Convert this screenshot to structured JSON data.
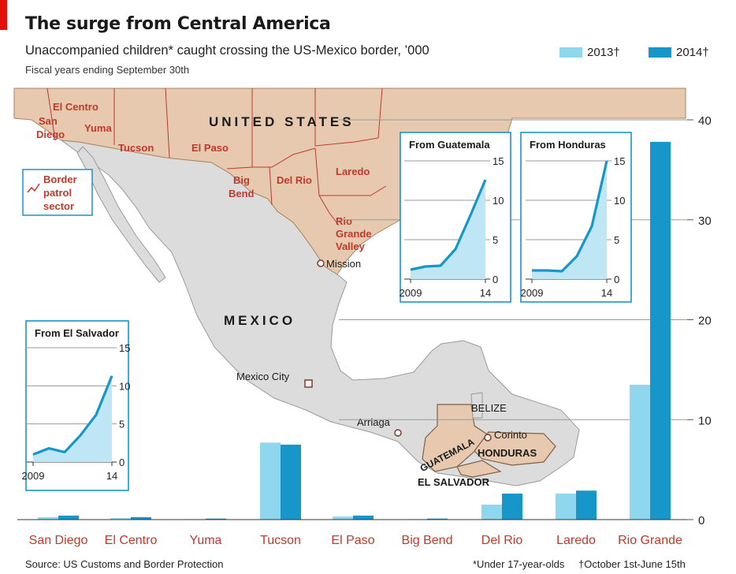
{
  "header": {
    "title": "The surge from Central America",
    "subtitle": "Unaccompanied children* caught crossing the US-Mexico border, ’000",
    "note": "Fiscal years ending September 30th"
  },
  "legend": {
    "items": [
      {
        "label": "2013†",
        "color": "#8fd6ef"
      },
      {
        "label": "2014†",
        "color": "#1796c9"
      }
    ]
  },
  "map": {
    "country_us": "UNITED STATES",
    "country_mexico": "MEXICO",
    "sector_legend": [
      "Border",
      "patrol",
      "sector"
    ],
    "sector_labels": [
      "El Centro",
      "San",
      "Diego",
      "Yuma",
      "Tucson",
      "El Paso",
      "Big",
      "Bend",
      "Del Rio",
      "Laredo",
      "Rio",
      "Grande",
      "Valley"
    ],
    "places": [
      "Mission",
      "Mexico City",
      "Arriaga",
      "BELIZE",
      "Corinto",
      "HONDURAS",
      "GUATEMALA",
      "EL SALVADOR"
    ]
  },
  "chart_data": [
    {
      "type": "bar",
      "categories": [
        "San Diego",
        "El Centro",
        "Yuma",
        "Tucson",
        "El Paso",
        "Big Bend",
        "Del Rio",
        "Laredo",
        "Rio Grande"
      ],
      "series": [
        {
          "name": "2013†",
          "values": [
            0.25,
            0.15,
            0.05,
            7.7,
            0.3,
            0.05,
            1.5,
            2.6,
            13.5
          ]
        },
        {
          "name": "2014†",
          "values": [
            0.4,
            0.25,
            0.1,
            7.5,
            0.4,
            0.1,
            2.6,
            2.9,
            37.8
          ]
        }
      ],
      "ylim": [
        0,
        40
      ],
      "yticks": [
        0,
        10,
        20,
        30,
        40
      ],
      "grid": true
    },
    {
      "type": "area",
      "title": "From El Salvador",
      "x": [
        2009,
        2010,
        2011,
        2012,
        2013,
        2014
      ],
      "values": [
        1.0,
        1.8,
        1.3,
        3.5,
        6.2,
        11.3
      ],
      "ylim": [
        0,
        15
      ],
      "yticks": [
        0,
        5,
        10,
        15
      ],
      "xticks": [
        "2009",
        "14"
      ]
    },
    {
      "type": "area",
      "title": "From Guatemala",
      "x": [
        2009,
        2010,
        2011,
        2012,
        2013,
        2014
      ],
      "values": [
        1.2,
        1.6,
        1.7,
        3.8,
        8.1,
        12.6
      ],
      "ylim": [
        0,
        15
      ],
      "yticks": [
        0,
        5,
        10,
        15
      ],
      "xticks": [
        "2009",
        "14"
      ]
    },
    {
      "type": "area",
      "title": "From Honduras",
      "x": [
        2009,
        2010,
        2011,
        2012,
        2013,
        2014
      ],
      "values": [
        1.1,
        1.1,
        1.0,
        2.9,
        6.7,
        15.0
      ],
      "ylim": [
        0,
        15
      ],
      "yticks": [
        0,
        5,
        10,
        15
      ],
      "xticks": [
        "2009",
        "14"
      ]
    }
  ],
  "footer": {
    "source": "Source: US Customs and Border Protection",
    "footnote1": "*Under 17-year-olds",
    "footnote2": "†October 1st-June 15th"
  }
}
